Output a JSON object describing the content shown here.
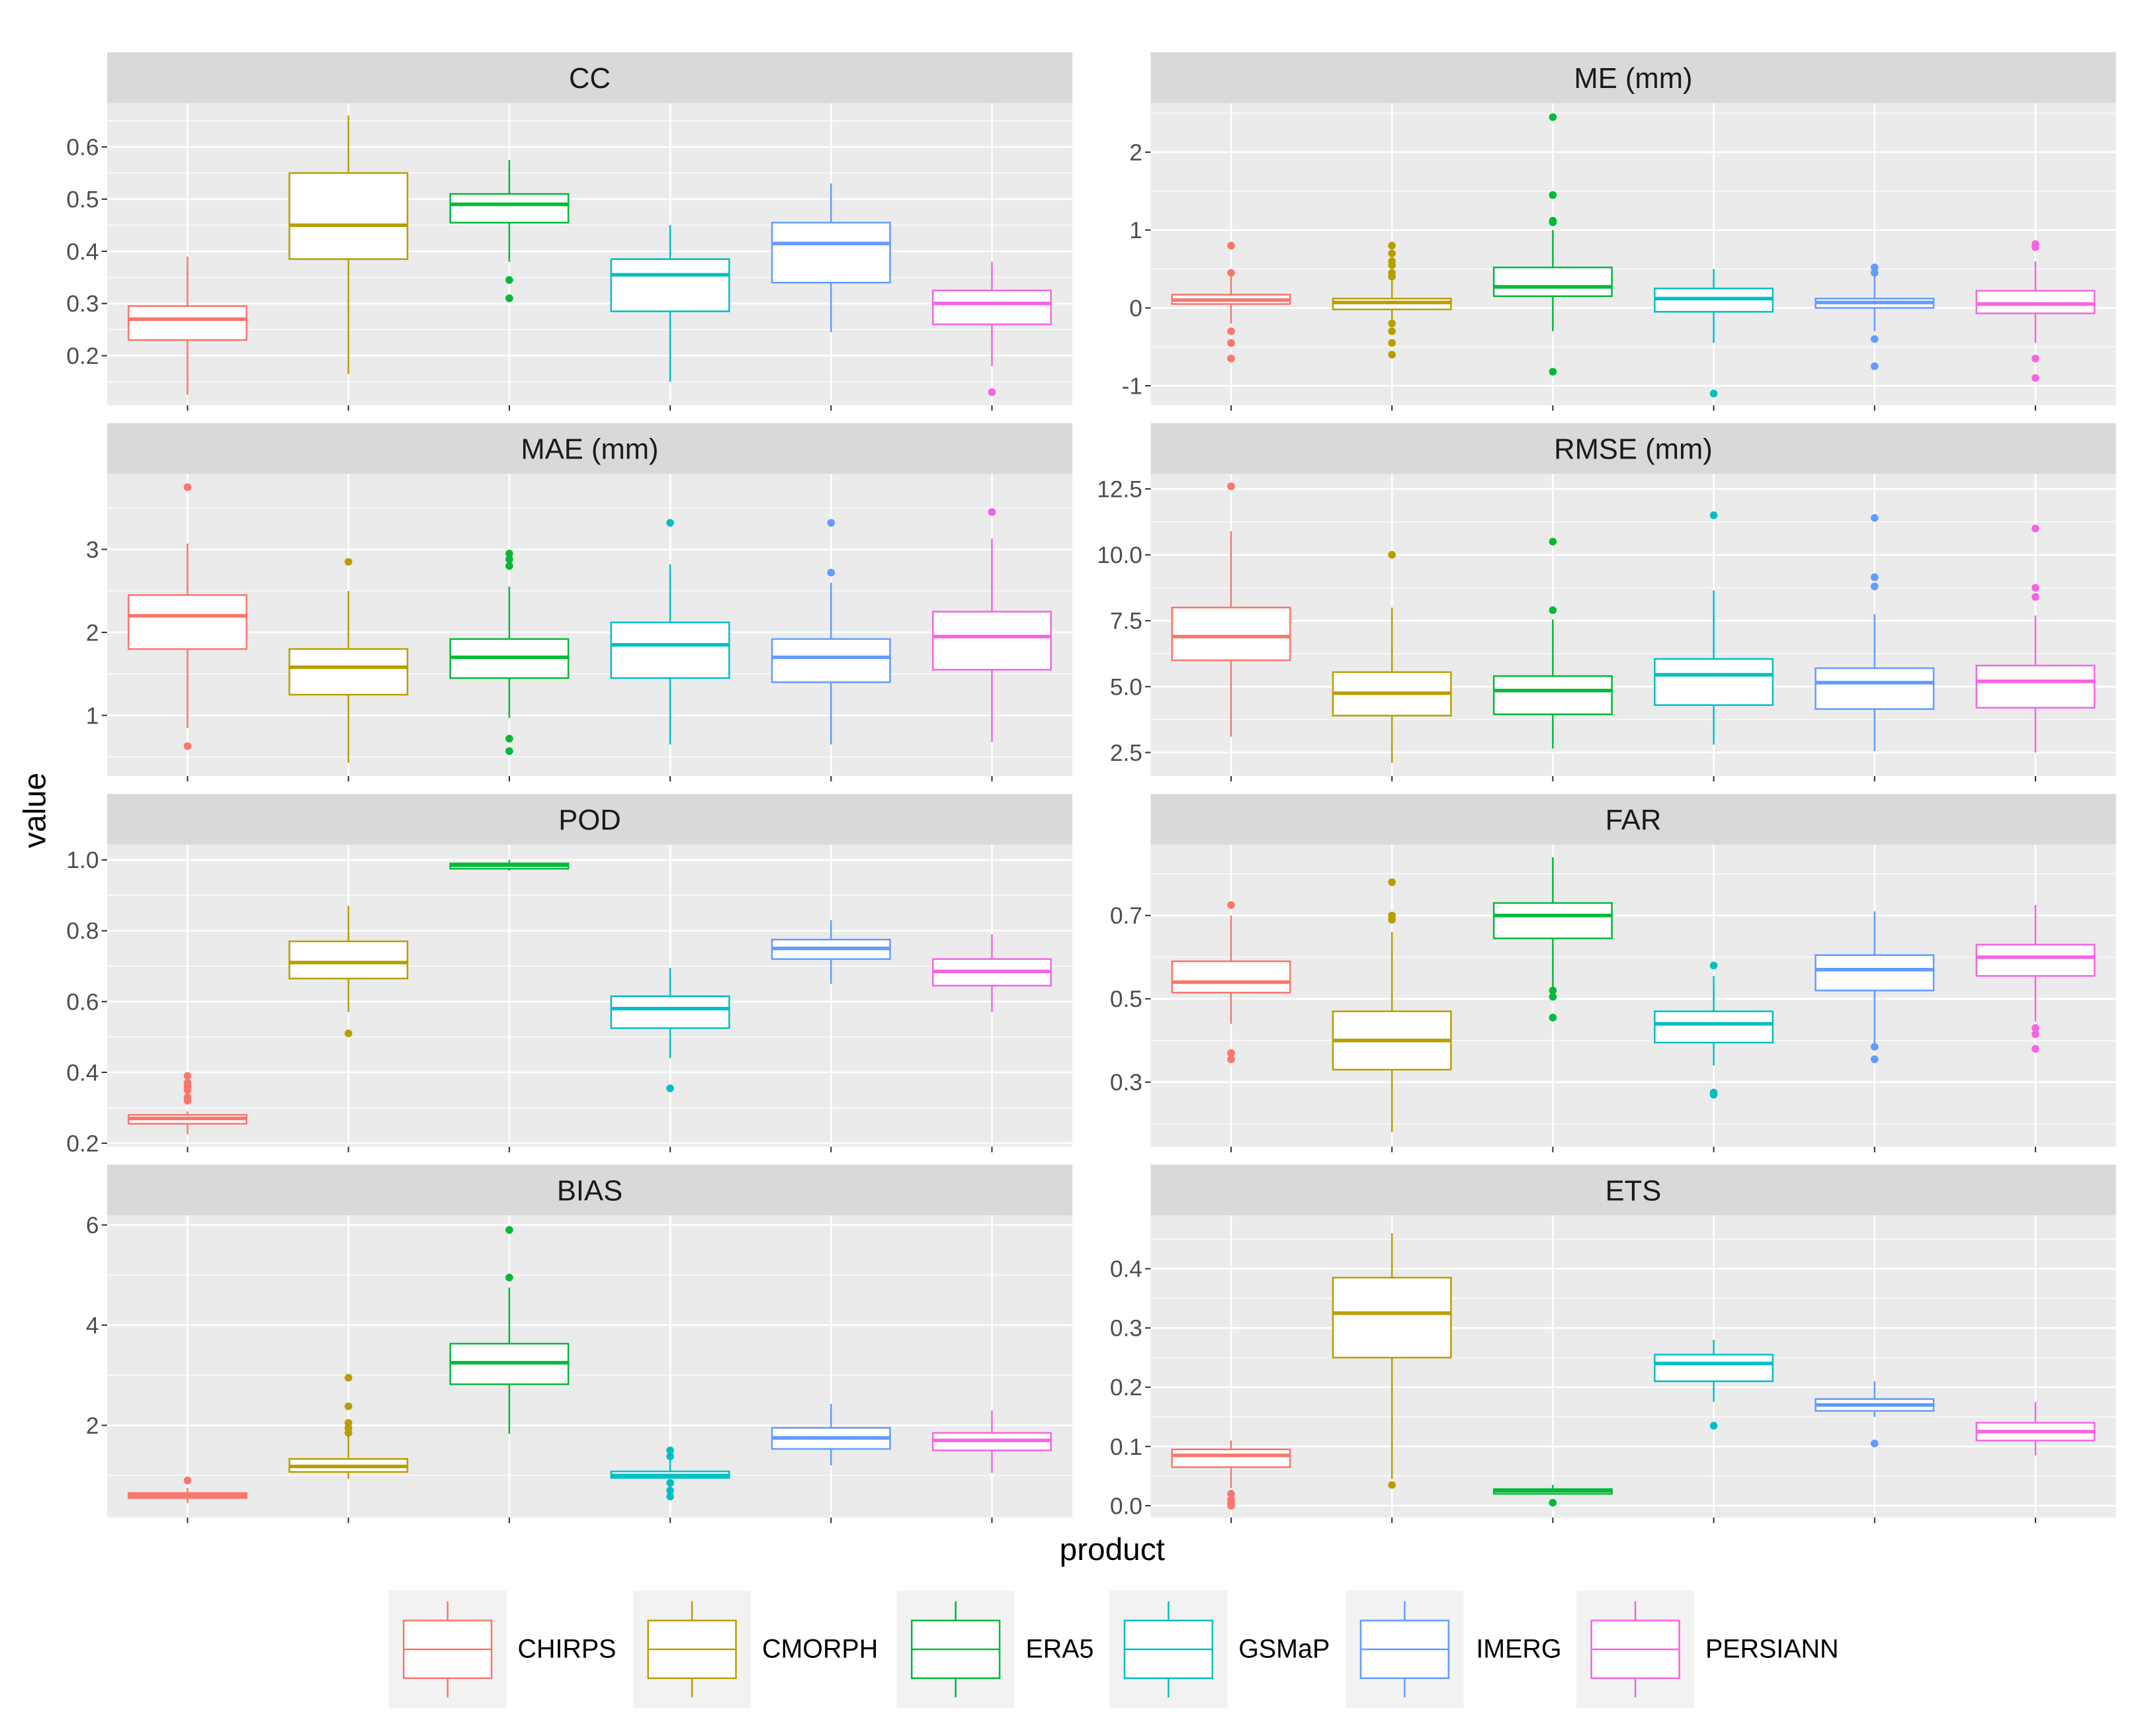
{
  "chart_data": {
    "type": "box",
    "xlabel": "product",
    "ylabel": "value",
    "categories": [
      "CHIRPS",
      "CMORPH",
      "ERA5",
      "GSMaP",
      "IMERG",
      "PERSIANN"
    ],
    "colors": [
      "#F8766D",
      "#B79F00",
      "#00BA38",
      "#00BFC4",
      "#619CFF",
      "#F564E3"
    ],
    "legend": {
      "placement": "bottom",
      "labels": [
        "CHIRPS",
        "CMORPH",
        "ERA5",
        "GSMaP",
        "IMERG",
        "PERSIANN"
      ]
    },
    "stat_order": [
      "whisker_low",
      "q1",
      "median",
      "q3",
      "whisker_high"
    ],
    "panels": [
      {
        "title": "CC",
        "ylim": [
          0.105,
          0.684
        ],
        "yticks": [
          0.2,
          0.3,
          0.4,
          0.5,
          0.6
        ],
        "ytick_labels": [
          "0.2",
          "0.3",
          "0.4",
          "0.5",
          "0.6"
        ],
        "stats": [
          [
            0.125,
            0.23,
            0.27,
            0.295,
            0.39
          ],
          [
            0.165,
            0.385,
            0.45,
            0.55,
            0.66
          ],
          [
            0.38,
            0.455,
            0.49,
            0.51,
            0.575
          ],
          [
            0.15,
            0.285,
            0.355,
            0.385,
            0.45
          ],
          [
            0.245,
            0.34,
            0.415,
            0.455,
            0.53
          ],
          [
            0.18,
            0.26,
            0.3,
            0.325,
            0.38
          ]
        ],
        "outliers": [
          [],
          [],
          [
            0.345,
            0.31
          ],
          [],
          [],
          [
            0.13
          ]
        ]
      },
      {
        "title": "ME (mm)",
        "ylim": [
          -1.25,
          2.63
        ],
        "yticks": [
          -1,
          0,
          1,
          2
        ],
        "ytick_labels": [
          "-1",
          "0",
          "1",
          "2"
        ],
        "stats": [
          [
            -0.2,
            0.05,
            0.1,
            0.17,
            0.4
          ],
          [
            -0.2,
            -0.02,
            0.07,
            0.12,
            0.35
          ],
          [
            -0.3,
            0.15,
            0.27,
            0.52,
            1.0
          ],
          [
            -0.45,
            -0.05,
            0.12,
            0.25,
            0.5
          ],
          [
            -0.3,
            0.0,
            0.07,
            0.12,
            0.4
          ],
          [
            -0.45,
            -0.07,
            0.05,
            0.22,
            0.6
          ]
        ],
        "outliers": [
          [
            0.8,
            0.45,
            -0.3,
            -0.45,
            -0.65
          ],
          [
            0.8,
            0.7,
            0.6,
            0.55,
            0.45,
            0.4,
            -0.2,
            -0.3,
            -0.45,
            -0.6
          ],
          [
            2.45,
            1.45,
            1.12,
            1.1,
            -0.82
          ],
          [
            -1.1
          ],
          [
            0.52,
            0.45,
            -0.4,
            -0.75
          ],
          [
            0.82,
            0.78,
            -0.65,
            -0.9
          ]
        ]
      },
      {
        "title": "MAE (mm)",
        "ylim": [
          0.27,
          3.91
        ],
        "yticks": [
          1,
          2,
          3
        ],
        "ytick_labels": [
          "1",
          "2",
          "3"
        ],
        "stats": [
          [
            0.85,
            1.8,
            2.2,
            2.45,
            3.07
          ],
          [
            0.43,
            1.25,
            1.58,
            1.8,
            2.5
          ],
          [
            0.97,
            1.45,
            1.7,
            1.92,
            2.55
          ],
          [
            0.65,
            1.45,
            1.85,
            2.12,
            2.82
          ],
          [
            0.65,
            1.4,
            1.7,
            1.92,
            2.6
          ],
          [
            0.68,
            1.55,
            1.95,
            2.25,
            3.13
          ]
        ],
        "outliers": [
          [
            3.75,
            0.63
          ],
          [
            2.85
          ],
          [
            2.95,
            2.88,
            2.8,
            0.72,
            0.57
          ],
          [
            3.32
          ],
          [
            3.32,
            2.72
          ],
          [
            3.45
          ]
        ]
      },
      {
        "title": "RMSE (mm)",
        "ylim": [
          1.61,
          13.07
        ],
        "yticks": [
          2.5,
          5,
          7.5,
          10,
          12.5
        ],
        "ytick_labels": [
          "2.5",
          "5.0",
          "7.5",
          "10.0",
          "12.5"
        ],
        "stats": [
          [
            3.1,
            6.0,
            6.9,
            8.0,
            10.9
          ],
          [
            2.1,
            3.9,
            4.75,
            5.55,
            8.0
          ],
          [
            2.65,
            3.95,
            4.85,
            5.4,
            7.55
          ],
          [
            2.8,
            4.3,
            5.45,
            6.05,
            8.65
          ],
          [
            2.55,
            4.15,
            5.15,
            5.7,
            7.75
          ],
          [
            2.5,
            4.2,
            5.2,
            5.8,
            7.7
          ]
        ],
        "outliers": [
          [
            12.6
          ],
          [
            10.0
          ],
          [
            10.5,
            7.9
          ],
          [
            11.5
          ],
          [
            11.4,
            9.15,
            8.8
          ],
          [
            11.0,
            8.75,
            8.4
          ]
        ]
      },
      {
        "title": "POD",
        "ylim": [
          0.19,
          1.043
        ],
        "yticks": [
          0.2,
          0.4,
          0.6,
          0.8,
          1.0
        ],
        "ytick_labels": [
          "0.2",
          "0.4",
          "0.6",
          "0.8",
          "1.0"
        ],
        "stats": [
          [
            0.225,
            0.255,
            0.27,
            0.28,
            0.29
          ],
          [
            0.57,
            0.665,
            0.71,
            0.77,
            0.87
          ],
          [
            0.97,
            0.975,
            0.985,
            0.99,
            1.0
          ],
          [
            0.44,
            0.525,
            0.58,
            0.615,
            0.695
          ],
          [
            0.65,
            0.72,
            0.75,
            0.775,
            0.83
          ],
          [
            0.57,
            0.645,
            0.685,
            0.72,
            0.79
          ]
        ],
        "outliers": [
          [
            0.39,
            0.37,
            0.36,
            0.35,
            0.33,
            0.32
          ],
          [
            0.51
          ],
          [],
          [
            0.355
          ],
          [],
          []
        ]
      },
      {
        "title": "FAR",
        "ylim": [
          0.145,
          0.87
        ],
        "yticks": [
          0.3,
          0.5,
          0.7
        ],
        "ytick_labels": [
          "0.3",
          "0.5",
          "0.7"
        ],
        "stats": [
          [
            0.44,
            0.515,
            0.54,
            0.59,
            0.7
          ],
          [
            0.18,
            0.33,
            0.4,
            0.47,
            0.66
          ],
          [
            0.525,
            0.645,
            0.7,
            0.73,
            0.84
          ],
          [
            0.34,
            0.395,
            0.44,
            0.47,
            0.555
          ],
          [
            0.39,
            0.52,
            0.57,
            0.605,
            0.71
          ],
          [
            0.445,
            0.555,
            0.6,
            0.63,
            0.725
          ]
        ],
        "outliers": [
          [
            0.725,
            0.37,
            0.355
          ],
          [
            0.78,
            0.7,
            0.69
          ],
          [
            0.52,
            0.505,
            0.455
          ],
          [
            0.58,
            0.275,
            0.27
          ],
          [
            0.385,
            0.355
          ],
          [
            0.43,
            0.415,
            0.38
          ]
        ]
      },
      {
        "title": "BIAS",
        "ylim": [
          0.16,
          6.19
        ],
        "yticks": [
          2,
          4,
          6
        ],
        "ytick_labels": [
          "2",
          "4",
          "6"
        ],
        "stats": [
          [
            0.45,
            0.55,
            0.6,
            0.65,
            0.75
          ],
          [
            0.93,
            1.07,
            1.18,
            1.33,
            1.8
          ],
          [
            1.83,
            2.82,
            3.25,
            3.63,
            4.75
          ],
          [
            0.93,
            0.95,
            1.0,
            1.08,
            1.33
          ],
          [
            1.2,
            1.53,
            1.75,
            1.95,
            2.43
          ],
          [
            1.05,
            1.5,
            1.7,
            1.85,
            2.3
          ]
        ],
        "outliers": [
          [
            0.9
          ],
          [
            2.95,
            2.38,
            2.05,
            1.95,
            1.85
          ],
          [
            5.9,
            4.95
          ],
          [
            1.5,
            1.38,
            0.85,
            0.7,
            0.58
          ],
          [],
          []
        ]
      },
      {
        "title": "ETS",
        "ylim": [
          -0.02,
          0.49
        ],
        "yticks": [
          0.0,
          0.1,
          0.2,
          0.3,
          0.4
        ],
        "ytick_labels": [
          "0.0",
          "0.1",
          "0.2",
          "0.3",
          "0.4"
        ],
        "stats": [
          [
            0.03,
            0.065,
            0.085,
            0.095,
            0.11
          ],
          [
            0.045,
            0.25,
            0.325,
            0.385,
            0.46
          ],
          [
            0.02,
            0.02,
            0.025,
            0.028,
            0.035
          ],
          [
            0.175,
            0.21,
            0.24,
            0.255,
            0.28
          ],
          [
            0.15,
            0.16,
            0.17,
            0.18,
            0.21
          ],
          [
            0.085,
            0.11,
            0.125,
            0.14,
            0.175
          ]
        ],
        "outliers": [
          [
            0.02,
            0.01,
            0.005,
            0.0
          ],
          [
            0.035
          ],
          [
            0.005
          ],
          [
            0.135
          ],
          [
            0.105
          ],
          []
        ]
      }
    ]
  }
}
